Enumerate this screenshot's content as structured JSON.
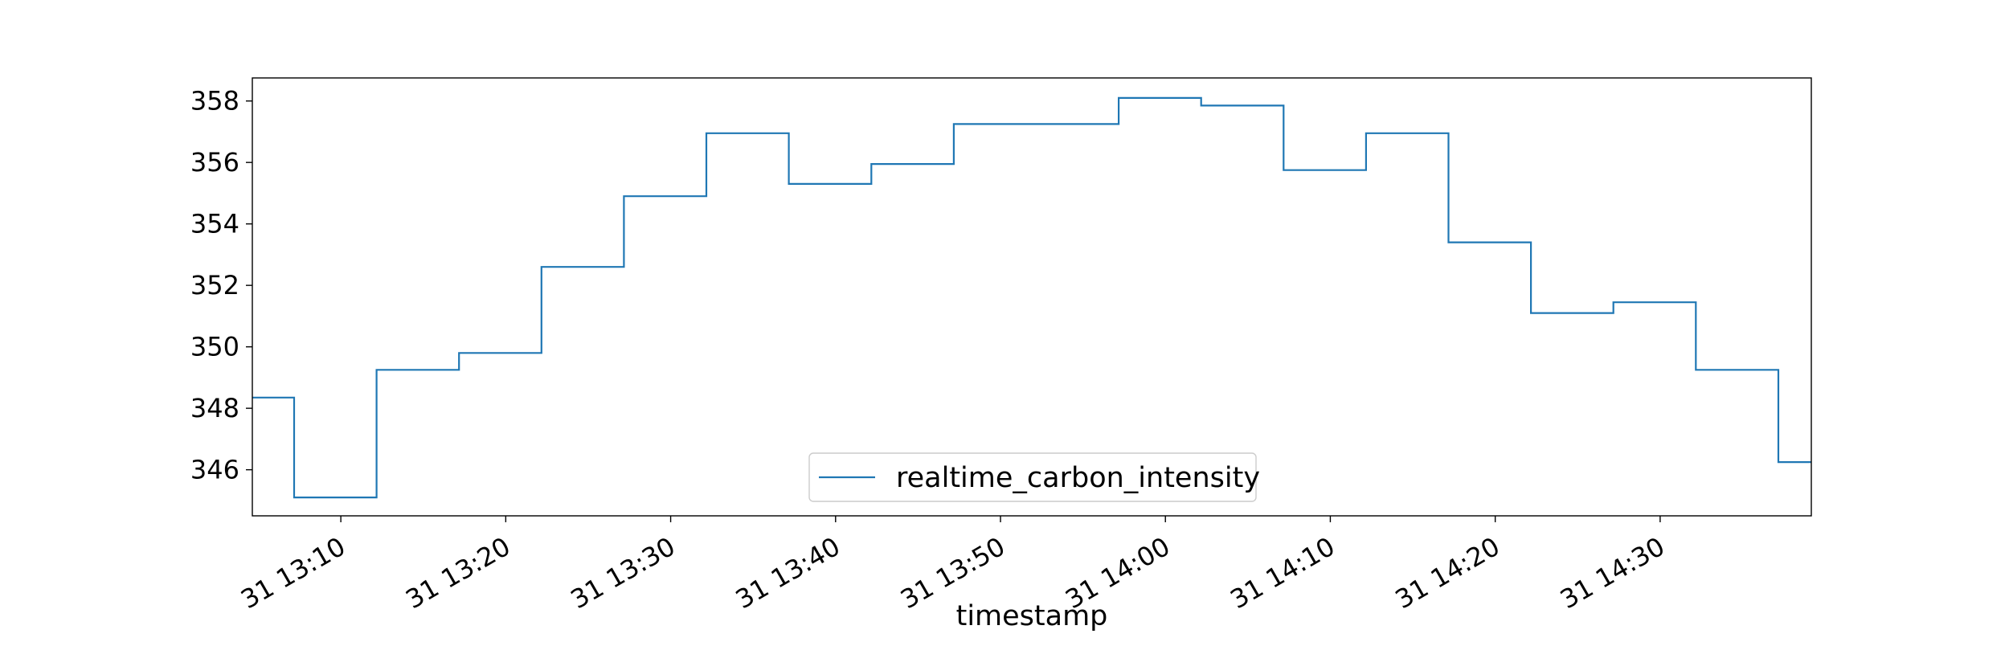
{
  "chart_data": {
    "type": "line",
    "title": "",
    "xlabel": "timestamp",
    "ylabel": "",
    "ylim": [
      344.5,
      358.75
    ],
    "xlim": [
      "13:04:38",
      "14:39:10"
    ],
    "grid": false,
    "legend_position": "lower center",
    "yticks": [
      346,
      348,
      350,
      352,
      354,
      356,
      358
    ],
    "ytick_labels": [
      "346",
      "348",
      "350",
      "352",
      "354",
      "356",
      "358"
    ],
    "xticks": [
      "13:10",
      "13:20",
      "13:30",
      "13:40",
      "13:50",
      "14:00",
      "14:10",
      "14:20",
      "14:30"
    ],
    "xtick_labels": [
      "31 13:10",
      "31 13:20",
      "31 13:30",
      "31 13:40",
      "31 13:50",
      "31 14:00",
      "31 14:10",
      "31 14:20",
      "31 14:30"
    ],
    "series": [
      {
        "name": "realtime_carbon_intensity",
        "color": "#1f77b4",
        "step": true,
        "x": [
          "13:04:38",
          "13:07:10",
          "13:12:10",
          "13:17:10",
          "13:22:10",
          "13:27:10",
          "13:32:10",
          "13:37:10",
          "13:42:10",
          "13:47:10",
          "13:52:10",
          "13:57:10",
          "14:02:10",
          "14:07:10",
          "14:12:10",
          "14:17:10",
          "14:22:10",
          "14:27:10",
          "14:32:10",
          "14:37:10",
          "14:39:10"
        ],
        "values": [
          348.35,
          345.1,
          349.25,
          349.8,
          352.6,
          354.9,
          356.95,
          355.3,
          355.95,
          357.25,
          357.25,
          358.1,
          357.85,
          355.75,
          356.95,
          353.4,
          351.1,
          351.45,
          349.25,
          346.25,
          346.25
        ]
      }
    ]
  }
}
